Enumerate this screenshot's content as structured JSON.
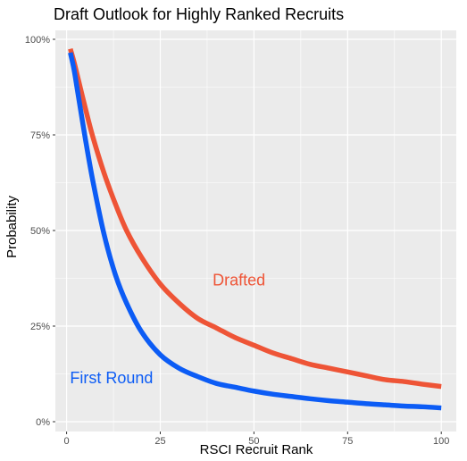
{
  "chart_data": {
    "type": "line",
    "title": "Draft Outlook for Highly Ranked Recruits",
    "xlabel": "RSCI Recruit Rank",
    "ylabel": "Probability",
    "xlim": [
      -3,
      104
    ],
    "ylim": [
      0,
      1.0
    ],
    "x_ticks": [
      {
        "value": 0,
        "label": "0"
      },
      {
        "value": 25,
        "label": "25"
      },
      {
        "value": 50,
        "label": "50"
      },
      {
        "value": 75,
        "label": "75"
      },
      {
        "value": 100,
        "label": "100"
      }
    ],
    "y_ticks": [
      {
        "value": 0,
        "label": "0%"
      },
      {
        "value": 0.25,
        "label": "25%"
      },
      {
        "value": 0.5,
        "label": "50%"
      },
      {
        "value": 0.75,
        "label": "75%"
      },
      {
        "value": 1.0,
        "label": "100%"
      }
    ],
    "grid": true,
    "background_color": "#ebebeb",
    "grid_color": "#ffffff",
    "legend": "none",
    "series": [
      {
        "name": "Drafted",
        "color": "#ee5436",
        "x": [
          1,
          2,
          3,
          5,
          7,
          10,
          13,
          16,
          20,
          25,
          30,
          35,
          40,
          45,
          50,
          55,
          60,
          65,
          70,
          75,
          80,
          85,
          90,
          95,
          100
        ],
        "y": [
          0.975,
          0.94,
          0.9,
          0.82,
          0.745,
          0.65,
          0.57,
          0.5,
          0.43,
          0.36,
          0.31,
          0.27,
          0.245,
          0.22,
          0.2,
          0.18,
          0.165,
          0.15,
          0.14,
          0.13,
          0.12,
          0.11,
          0.105,
          0.098,
          0.092
        ],
        "label": {
          "text": "Drafted",
          "x": 46,
          "y": 0.37
        }
      },
      {
        "name": "First Round",
        "color": "#0c5cf5",
        "x": [
          1,
          2,
          3,
          5,
          7,
          10,
          13,
          16,
          20,
          25,
          30,
          35,
          40,
          45,
          50,
          55,
          60,
          65,
          70,
          75,
          80,
          85,
          90,
          95,
          100
        ],
        "y": [
          0.965,
          0.92,
          0.86,
          0.74,
          0.63,
          0.49,
          0.385,
          0.31,
          0.235,
          0.175,
          0.14,
          0.118,
          0.1,
          0.09,
          0.08,
          0.072,
          0.066,
          0.06,
          0.055,
          0.051,
          0.047,
          0.044,
          0.041,
          0.039,
          0.036
        ],
        "label": {
          "text": "First Round",
          "x": 12,
          "y": 0.115
        }
      }
    ]
  }
}
